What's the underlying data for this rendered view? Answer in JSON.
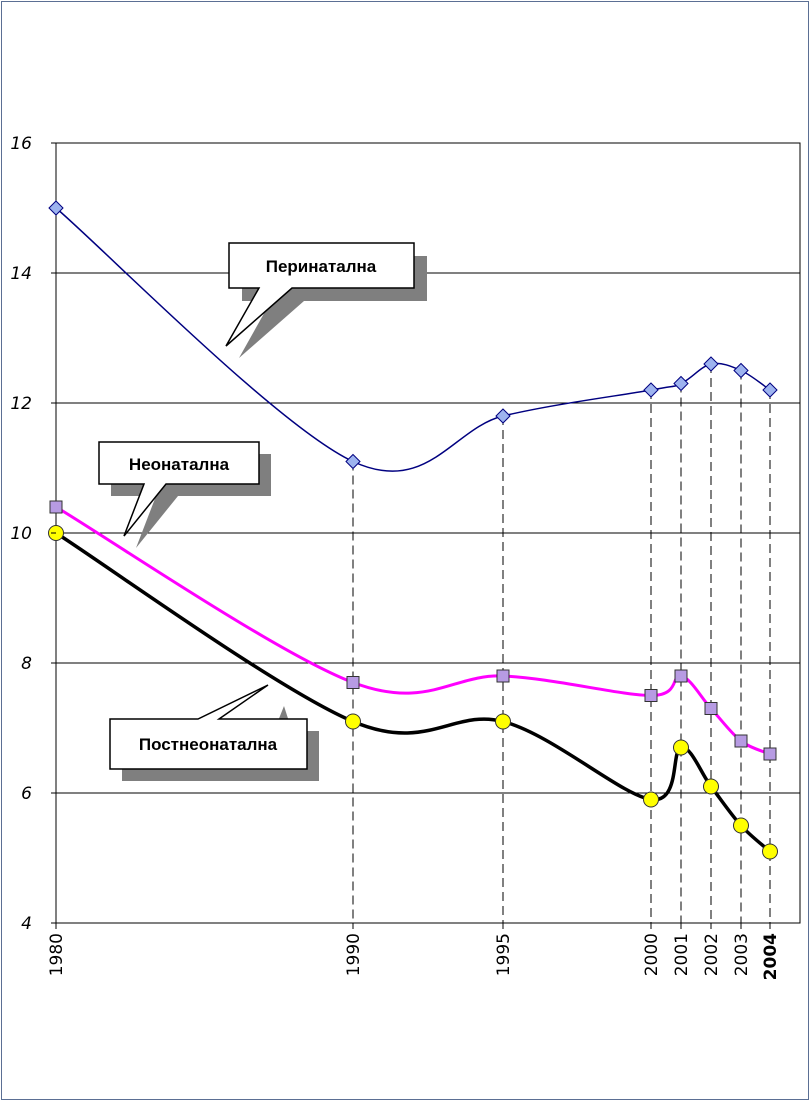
{
  "chart_data": {
    "type": "line",
    "x": [
      1980,
      1990,
      1995,
      2000,
      2001,
      2002,
      2003,
      2004
    ],
    "x_tick_labels": [
      "1980",
      "1990",
      "1995",
      "2000",
      "2001",
      "2002",
      "2003",
      "2004"
    ],
    "highlighted_x_tick": "2004",
    "ylim": [
      4,
      16
    ],
    "y_ticks": [
      "4",
      "6",
      "8",
      "10",
      "12",
      "14",
      "16"
    ],
    "grid": "horizontal",
    "series": [
      {
        "name": "Перинатална",
        "color": "#000080",
        "marker": "diamond",
        "marker_color": "#9db3ef",
        "values": [
          15.0,
          11.1,
          11.8,
          12.2,
          12.3,
          12.6,
          12.5,
          12.2
        ]
      },
      {
        "name": "Неонатална",
        "color": "#ff00ff",
        "marker": "square",
        "marker_color": "#b79be3",
        "values": [
          10.4,
          7.7,
          7.8,
          7.5,
          7.8,
          7.3,
          6.8,
          6.6
        ]
      },
      {
        "name": "Постнеонатална",
        "color": "#000000",
        "marker": "circle",
        "marker_color": "#ffff00",
        "values": [
          10.0,
          7.1,
          7.1,
          5.9,
          6.7,
          6.1,
          5.5,
          5.1
        ]
      }
    ],
    "callouts": [
      {
        "text": "Перинатална",
        "series": 0
      },
      {
        "text": "Неонатална",
        "series": 1
      },
      {
        "text": "Постнеонатална",
        "series": 2
      }
    ]
  }
}
